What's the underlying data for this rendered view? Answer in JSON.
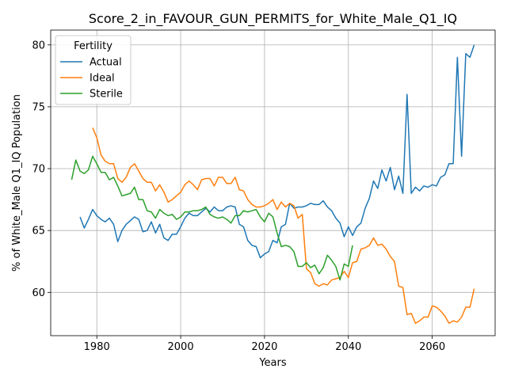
{
  "chart_data": {
    "type": "line",
    "title": "Score_2_in_FAVOUR_GUN_PERMITS_for_White_Male_Q1_IQ",
    "xlabel": "Years",
    "ylabel": "% of White_Male Q1_IQ Population",
    "xlim": [
      1969,
      2075
    ],
    "ylim": [
      56.5,
      81.2
    ],
    "xticks": [
      1980,
      2000,
      2020,
      2040,
      2060
    ],
    "yticks": [
      60,
      65,
      70,
      75,
      80
    ],
    "grid": true,
    "legend": {
      "title": "Fertility",
      "position": "top-left"
    },
    "series": [
      {
        "name": "Actual",
        "color": "#1f77b4",
        "x": [
          1976,
          1977,
          1978,
          1979,
          1980,
          1981,
          1982,
          1983,
          1984,
          1985,
          1986,
          1987,
          1988,
          1989,
          1990,
          1991,
          1992,
          1993,
          1994,
          1995,
          1996,
          1997,
          1998,
          1999,
          2000,
          2001,
          2002,
          2003,
          2004,
          2005,
          2006,
          2007,
          2008,
          2009,
          2010,
          2011,
          2012,
          2013,
          2014,
          2015,
          2016,
          2017,
          2018,
          2019,
          2020,
          2021,
          2022,
          2023,
          2024,
          2025,
          2026,
          2027,
          2028,
          2029,
          2030,
          2031,
          2032,
          2033,
          2034,
          2035,
          2036,
          2037,
          2038,
          2039,
          2040,
          2041,
          2042,
          2043,
          2044,
          2045,
          2046,
          2047,
          2048,
          2049,
          2050,
          2051,
          2052,
          2053,
          2054,
          2055,
          2056,
          2057,
          2058,
          2059,
          2060,
          2061,
          2062,
          2063,
          2064,
          2065,
          2066,
          2067,
          2068,
          2069,
          2070
        ],
        "y": [
          66.1,
          65.2,
          65.9,
          66.7,
          66.2,
          65.9,
          65.7,
          66.0,
          65.5,
          64.1,
          65.0,
          65.5,
          65.8,
          66.1,
          65.9,
          64.9,
          65.0,
          65.7,
          64.8,
          65.5,
          64.4,
          64.2,
          64.7,
          64.7,
          65.3,
          66.0,
          66.4,
          66.2,
          66.2,
          66.5,
          66.8,
          66.5,
          66.9,
          66.6,
          66.6,
          66.9,
          67.0,
          66.9,
          65.5,
          65.3,
          64.2,
          63.8,
          63.7,
          62.8,
          63.1,
          63.3,
          64.2,
          64.0,
          65.3,
          65.5,
          67.2,
          66.8,
          66.9,
          66.9,
          67.0,
          67.2,
          67.1,
          67.1,
          67.4,
          66.9,
          66.6,
          66.0,
          65.6,
          64.5,
          65.3,
          64.6,
          65.3,
          65.6,
          66.8,
          67.6,
          69.0,
          68.4,
          69.9,
          69.0,
          70.1,
          68.3,
          69.4,
          68.0,
          76.0,
          68.0,
          68.5,
          68.2,
          68.6,
          68.5,
          68.7,
          68.6,
          69.3,
          69.5,
          70.4,
          70.4,
          79.0,
          71.0,
          79.3,
          79.0,
          80.0
        ]
      },
      {
        "name": "Ideal",
        "color": "#ff7f0e",
        "x": [
          1979,
          1980,
          1981,
          1982,
          1983,
          1984,
          1985,
          1986,
          1987,
          1988,
          1989,
          1990,
          1991,
          1992,
          1993,
          1994,
          1995,
          1996,
          1997,
          1998,
          1999,
          2000,
          2001,
          2002,
          2003,
          2004,
          2005,
          2006,
          2007,
          2008,
          2009,
          2010,
          2011,
          2012,
          2013,
          2014,
          2015,
          2016,
          2017,
          2018,
          2019,
          2020,
          2021,
          2022,
          2023,
          2024,
          2025,
          2026,
          2027,
          2028,
          2029,
          2030,
          2031,
          2032,
          2033,
          2034,
          2035,
          2036,
          2037,
          2038,
          2039,
          2040,
          2041,
          2042,
          2043,
          2044,
          2045,
          2046,
          2047,
          2048,
          2049,
          2050,
          2051,
          2052,
          2053,
          2054,
          2055,
          2056,
          2057,
          2058,
          2059,
          2060,
          2061,
          2062,
          2063,
          2064,
          2065,
          2066,
          2067,
          2068,
          2069,
          2070
        ],
        "y": [
          73.3,
          72.5,
          71.1,
          70.6,
          70.4,
          70.4,
          69.2,
          68.9,
          69.3,
          70.1,
          70.4,
          69.8,
          69.2,
          68.9,
          68.9,
          68.2,
          68.7,
          68.1,
          67.3,
          67.5,
          67.8,
          68.1,
          68.7,
          69.0,
          68.7,
          68.3,
          69.1,
          69.2,
          69.2,
          68.6,
          69.3,
          69.3,
          68.8,
          68.8,
          69.3,
          68.3,
          68.2,
          67.5,
          67.1,
          66.9,
          66.9,
          67.0,
          67.2,
          67.5,
          66.7,
          67.3,
          66.9,
          67.2,
          67.0,
          66.0,
          66.3,
          61.9,
          61.6,
          60.7,
          60.5,
          60.7,
          60.6,
          61.0,
          61.1,
          61.2,
          61.7,
          61.2,
          62.4,
          62.5,
          63.5,
          63.6,
          63.8,
          64.4,
          63.8,
          63.9,
          63.5,
          62.9,
          62.5,
          60.5,
          60.4,
          58.2,
          58.3,
          57.5,
          57.7,
          58.0,
          58.0,
          58.9,
          58.8,
          58.5,
          58.1,
          57.5,
          57.7,
          57.6,
          58.0,
          58.8,
          58.8,
          60.3
        ]
      },
      {
        "name": "Sterile",
        "color": "#2ca02c",
        "x": [
          1974,
          1975,
          1976,
          1977,
          1978,
          1979,
          1980,
          1981,
          1982,
          1983,
          1984,
          1985,
          1986,
          1987,
          1988,
          1989,
          1990,
          1991,
          1992,
          1993,
          1994,
          1995,
          1996,
          1997,
          1998,
          1999,
          2000,
          2001,
          2002,
          2003,
          2004,
          2005,
          2006,
          2007,
          2008,
          2009,
          2010,
          2011,
          2012,
          2013,
          2014,
          2015,
          2016,
          2017,
          2018,
          2019,
          2020,
          2021,
          2022,
          2023,
          2024,
          2025,
          2026,
          2027,
          2028,
          2029,
          2030,
          2031,
          2032,
          2033,
          2034,
          2035,
          2036,
          2037,
          2038,
          2039,
          2040,
          2041
        ],
        "y": [
          69.1,
          70.7,
          69.8,
          69.6,
          69.9,
          71.0,
          70.4,
          69.7,
          69.7,
          69.1,
          69.3,
          68.6,
          67.8,
          67.9,
          68.0,
          68.5,
          67.5,
          67.5,
          66.6,
          66.5,
          66.0,
          66.7,
          66.4,
          66.2,
          66.3,
          65.9,
          66.1,
          66.5,
          66.5,
          66.6,
          66.6,
          66.7,
          66.9,
          66.3,
          66.1,
          66.0,
          66.1,
          65.9,
          65.6,
          66.2,
          66.2,
          66.6,
          66.5,
          66.6,
          66.7,
          66.1,
          65.7,
          66.4,
          66.1,
          64.8,
          63.7,
          63.8,
          63.7,
          63.3,
          62.1,
          62.1,
          62.4,
          62.0,
          62.2,
          61.5,
          62.0,
          63.0,
          62.6,
          62.1,
          61.0,
          62.3,
          62.1,
          63.8
        ]
      }
    ]
  }
}
